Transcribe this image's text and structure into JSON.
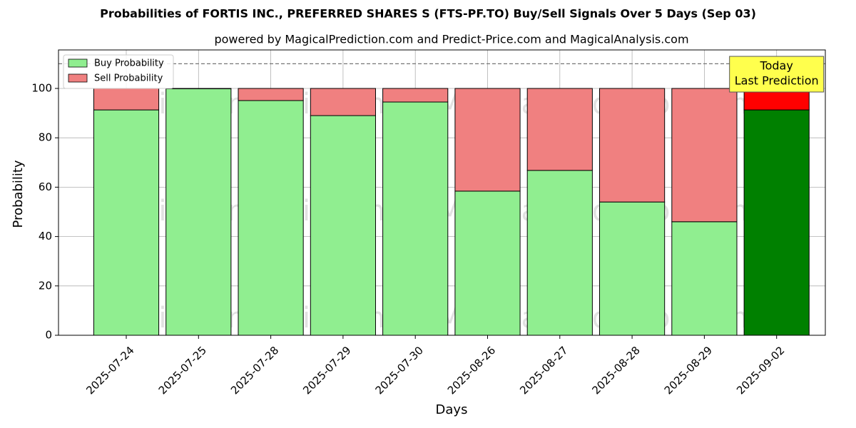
{
  "chart_data": {
    "type": "stacked_bar",
    "title": "Probabilities of FORTIS INC., PREFERRED SHARES S (FTS-PF.TO) Buy/Sell Signals Over 5 Days (Sep 03)",
    "subtitle": "powered by MagicalPrediction.com and Predict-Price.com and MagicalAnalysis.com",
    "x_label": "Days",
    "y_label": "Probability",
    "categories": [
      "2025-07-24",
      "2025-07-25",
      "2025-07-28",
      "2025-07-29",
      "2025-07-30",
      "2025-08-26",
      "2025-08-27",
      "2025-08-28",
      "2025-08-29",
      "2025-09-02"
    ],
    "series": [
      {
        "name": "Buy Probability",
        "color": "#90ee90",
        "last_color": "#008000",
        "values": [
          91.3,
          99.9,
          95.1,
          89.0,
          94.5,
          58.4,
          66.8,
          54.0,
          46.0,
          91.3
        ]
      },
      {
        "name": "Sell Probability",
        "color": "#f08080",
        "last_color": "#ff0000",
        "values": [
          8.7,
          0.1,
          4.9,
          11.0,
          5.5,
          41.6,
          33.2,
          46.0,
          54.0,
          8.7
        ]
      }
    ],
    "ylim": [
      0,
      115.6
    ],
    "yticks": [
      0,
      20,
      40,
      60,
      80,
      100
    ],
    "reference_line": 110,
    "annotation": [
      "Today",
      "Last Prediction"
    ],
    "watermarks": [
      "MagicalAnalysis.com",
      "MagicalPrediction.com"
    ],
    "grid": true,
    "legend": "upper-left"
  }
}
